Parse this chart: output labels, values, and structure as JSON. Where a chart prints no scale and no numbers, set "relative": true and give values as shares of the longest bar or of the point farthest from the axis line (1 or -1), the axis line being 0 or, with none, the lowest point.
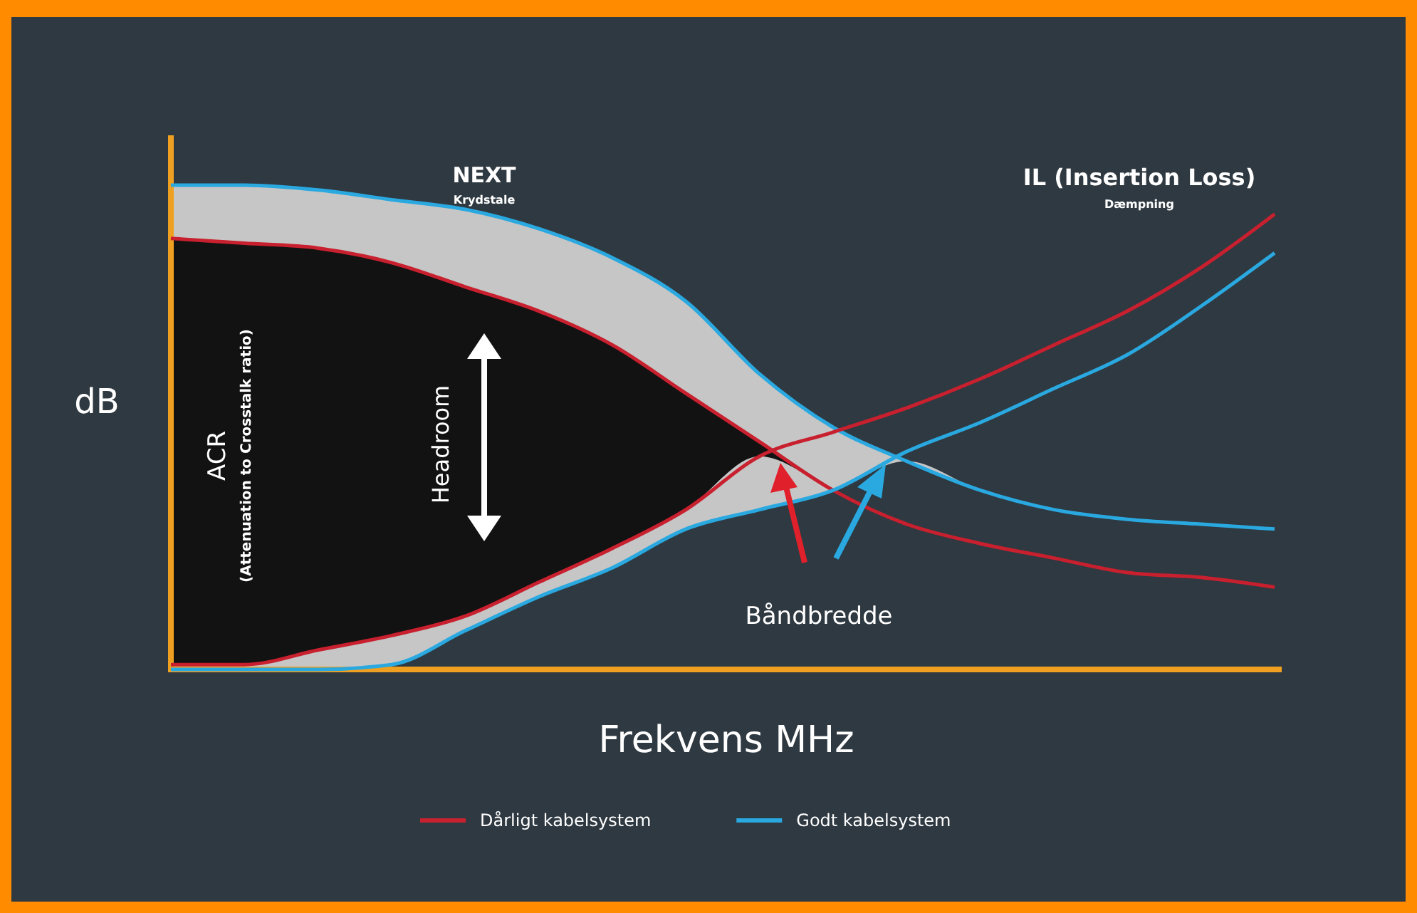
{
  "chart_data": {
    "type": "line",
    "relative": true,
    "xlabel": "Frekvens MHz",
    "ylabel": "dB",
    "legend": "bottom",
    "marker": "none",
    "line_style": "solid",
    "categories": [
      null,
      null,
      null,
      null,
      null,
      null,
      null,
      null,
      null,
      null,
      null,
      null,
      null,
      null,
      null,
      null
    ],
    "series": [
      {
        "name": "Godt kabelsystem",
        "color": "#2aa8e0",
        "values": [
          1,
          1,
          0.99,
          0.97,
          0.95,
          0.91,
          0.85,
          0.76,
          0.61,
          0.5,
          0.43,
          0.37,
          0.33,
          0.31,
          0.3,
          0.29
        ],
        "upper": [
          1,
          1,
          0.99,
          0.97,
          0.95,
          0.91,
          0.85,
          0.76,
          0.61,
          0.5,
          0.43,
          0.37,
          0.33,
          0.31,
          0.3,
          0.29
        ],
        "lower": [
          0,
          0,
          0,
          0.01,
          0.08,
          0.15,
          0.21,
          0.29,
          0.33,
          0.37,
          0.43,
          0.37,
          0.33,
          0.31,
          0.3,
          0.29
        ]
      },
      {
        "name": "Dårligt kabelsystem",
        "color": "#c8202e",
        "values": [
          0.89,
          0.88,
          0.87,
          0.84,
          0.79,
          0.74,
          0.67,
          0.57,
          0.47,
          0.37,
          0.3,
          0.26,
          0.23,
          0.2,
          0.19,
          0.17
        ],
        "upper": [
          0.89,
          0.88,
          0.87,
          0.84,
          0.79,
          0.74,
          0.67,
          0.57,
          0.47,
          0.37,
          0.3,
          0.26,
          0.23,
          0.2,
          0.19,
          0.17
        ],
        "lower": [
          0.01,
          0.01,
          0.04,
          0.07,
          0.11,
          0.18,
          0.25,
          0.33,
          0.44,
          0.37,
          0.3,
          0.26,
          0.23,
          0.2,
          0.19,
          0.17
        ]
      },
      {
        "color": "#c8202e",
        "values": [
          0.01,
          0.01,
          0.04,
          0.07,
          0.11,
          0.18,
          0.25,
          0.33,
          0.44,
          0.49,
          0.54,
          0.6,
          0.67,
          0.74,
          0.83,
          0.94
        ]
      },
      {
        "color": "#2aa8e0",
        "values": [
          0,
          0,
          0,
          0.01,
          0.08,
          0.15,
          0.21,
          0.29,
          0.33,
          0.37,
          0.45,
          0.51,
          0.58,
          0.65,
          0.75,
          0.86
        ]
      }
    ],
    "annotations": [
      "NEXT",
      "Krydstale",
      "IL (Insertion Loss)",
      "Dæmpning",
      "ACR",
      "(Attenuation to Crosstalk ratio)",
      "Headroom",
      "Båndbredde"
    ]
  }
}
